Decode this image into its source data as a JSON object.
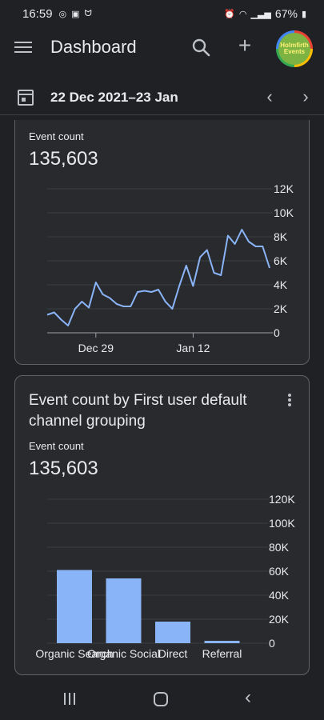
{
  "status_bar": {
    "time": "16:59",
    "icons_left": [
      "threads-icon",
      "ring-app-icon",
      "cat-app-icon"
    ],
    "icons_right": [
      "alarm-icon",
      "wifi-icon",
      "signal-icon"
    ],
    "battery": "67%"
  },
  "app_bar": {
    "title": "Dashboard",
    "avatar_text_line1": "Holmfirth",
    "avatar_text_line2": "Events"
  },
  "date_bar": {
    "range": "22 Dec 2021–23 Jan"
  },
  "card1": {
    "metric_label": "Event count",
    "metric_value": "135,603"
  },
  "card2": {
    "title": "Event count by First user default channel grouping",
    "metric_label": "Event count",
    "metric_value": "135,603"
  },
  "colors": {
    "series": "#8ab4f8",
    "grid": "#3c4043",
    "background": "#202124",
    "card": "#292a2d"
  },
  "chart_data": [
    {
      "type": "line",
      "title": "",
      "x": [
        "2021-12-22",
        "2021-12-23",
        "2021-12-24",
        "2021-12-25",
        "2021-12-26",
        "2021-12-27",
        "2021-12-28",
        "2021-12-29",
        "2021-12-30",
        "2021-12-31",
        "2022-01-01",
        "2022-01-02",
        "2022-01-03",
        "2022-01-04",
        "2022-01-05",
        "2022-01-06",
        "2022-01-07",
        "2022-01-08",
        "2022-01-09",
        "2022-01-10",
        "2022-01-11",
        "2022-01-12",
        "2022-01-13",
        "2022-01-14",
        "2022-01-15",
        "2022-01-16",
        "2022-01-17",
        "2022-01-18",
        "2022-01-19",
        "2022-01-20",
        "2022-01-21",
        "2022-01-22",
        "2022-01-23"
      ],
      "series": [
        {
          "values": [
            1500,
            1700,
            1100,
            600,
            2000,
            2600,
            2100,
            4200,
            3200,
            2900,
            2400,
            2200,
            2200,
            3400,
            3500,
            3400,
            3600,
            2600,
            2000,
            3900,
            5600,
            3900,
            6300,
            6900,
            5000,
            4800,
            8100,
            7400,
            8600,
            7600,
            7200,
            7200,
            5400
          ]
        }
      ],
      "xticks": [
        {
          "x": "2021-12-29",
          "label": "Dec 29"
        },
        {
          "x": "2022-01-12",
          "label": "Jan 12"
        }
      ],
      "yticks": [
        0,
        2000,
        4000,
        6000,
        8000,
        10000,
        12000
      ],
      "ytick_labels": [
        "0",
        "2K",
        "4K",
        "6K",
        "8K",
        "10K",
        "12K"
      ],
      "ylim": [
        0,
        12000
      ],
      "grid": true,
      "legend": "none"
    },
    {
      "type": "bar",
      "title": "Event count by First user default channel grouping",
      "categories": [
        "Organic Search",
        "Organic Social",
        "Direct",
        "Referral"
      ],
      "values": [
        61000,
        54000,
        18000,
        2000
      ],
      "yticks": [
        0,
        20000,
        40000,
        60000,
        80000,
        100000,
        120000
      ],
      "ytick_labels": [
        "0",
        "20K",
        "40K",
        "60K",
        "80K",
        "100K",
        "120K"
      ],
      "ylim": [
        0,
        120000
      ],
      "grid": true,
      "legend": "none"
    }
  ]
}
